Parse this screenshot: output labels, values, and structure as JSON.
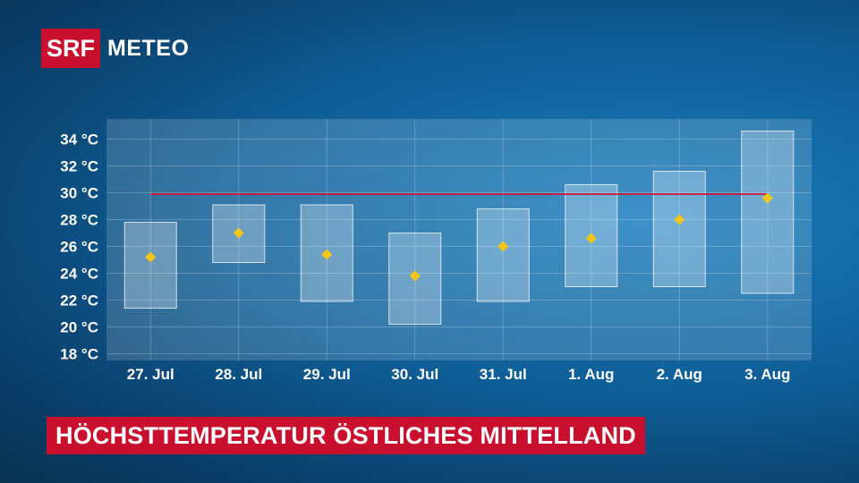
{
  "logo": {
    "brand": "SRF",
    "product": "METEO"
  },
  "colors": {
    "brand_red": "#c8102e",
    "marker": "#f5c518",
    "reference_line": "#d0142c"
  },
  "chart_data": {
    "type": "range-bar",
    "title": "HÖCHSTTEMPERATUR ÖSTLICHES MITTELLAND",
    "categories": [
      "27. Jul",
      "28. Jul",
      "29. Jul",
      "30. Jul",
      "31. Jul",
      "1. Aug",
      "2. Aug",
      "3. Aug"
    ],
    "low": [
      21.4,
      24.8,
      21.9,
      20.2,
      21.9,
      23.0,
      23.0,
      22.5
    ],
    "high": [
      27.8,
      29.1,
      29.1,
      27.0,
      28.8,
      30.6,
      31.6,
      34.6
    ],
    "expected": [
      25.2,
      27.0,
      25.4,
      23.8,
      26.0,
      26.6,
      28.0,
      29.6
    ],
    "reference_line": 29.9,
    "ylim": [
      17.5,
      35.5
    ],
    "yticks": [
      34,
      32,
      30,
      28,
      26,
      24,
      22,
      20,
      18
    ],
    "ytick_labels": [
      "34 °C",
      "32 °C",
      "30 °C",
      "28 °C",
      "26 °C",
      "24 °C",
      "22 °C",
      "20 °C",
      "18 °C"
    ],
    "grid": true
  }
}
